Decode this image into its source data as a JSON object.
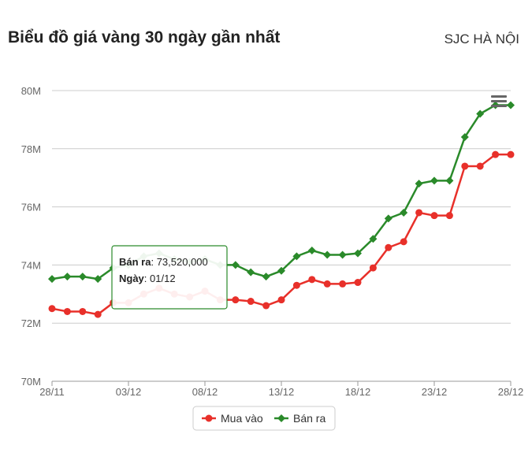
{
  "header": {
    "title": "Biểu đồ giá vàng 30 ngày gần nhất",
    "location": "SJC HÀ NỘI"
  },
  "chart_data": {
    "type": "line",
    "x": [
      "28/11",
      "29/11",
      "30/11",
      "01/12",
      "02/12",
      "03/12",
      "04/12",
      "05/12",
      "06/12",
      "07/12",
      "08/12",
      "09/12",
      "10/12",
      "11/12",
      "12/12",
      "13/12",
      "14/12",
      "15/12",
      "16/12",
      "17/12",
      "18/12",
      "19/12",
      "20/12",
      "21/12",
      "22/12",
      "23/12",
      "24/12",
      "25/12",
      "26/12",
      "27/12",
      "28/12"
    ],
    "x_tick_labels": [
      "28/11",
      "03/12",
      "08/12",
      "13/12",
      "18/12",
      "23/12",
      "28/12"
    ],
    "x_tick_indices": [
      0,
      5,
      10,
      15,
      20,
      25,
      30
    ],
    "y_ticks": [
      70,
      72,
      74,
      76,
      78,
      80
    ],
    "y_tick_labels": [
      "70M",
      "72M",
      "74M",
      "76M",
      "78M",
      "80M"
    ],
    "ylim": [
      70,
      80
    ],
    "grid": true,
    "legend_position": "bottom-center",
    "series": [
      {
        "name": "Mua vào",
        "color": "#e8302a",
        "marker": "circle",
        "values": [
          72.5,
          72.4,
          72.4,
          72.3,
          72.7,
          72.7,
          73.0,
          73.2,
          73.0,
          72.9,
          73.1,
          72.8,
          72.8,
          72.75,
          72.6,
          72.8,
          73.3,
          73.5,
          73.35,
          73.35,
          73.4,
          73.9,
          74.6,
          74.8,
          75.8,
          75.7,
          75.7,
          77.4,
          77.4,
          77.8,
          77.8
        ]
      },
      {
        "name": "Bán ra",
        "color": "#2a8a2a",
        "marker": "diamond",
        "values": [
          73.52,
          73.6,
          73.6,
          73.52,
          73.9,
          74.0,
          74.3,
          74.4,
          74.2,
          74.1,
          74.2,
          74.0,
          74.0,
          73.75,
          73.6,
          73.8,
          74.3,
          74.5,
          74.35,
          74.35,
          74.4,
          74.9,
          75.6,
          75.8,
          76.8,
          76.9,
          76.9,
          78.4,
          79.2,
          79.5,
          79.5
        ]
      }
    ],
    "tooltip": {
      "series_label": "Bán ra",
      "value": "73,520,000",
      "date_label": "Ngày",
      "date": "01/12"
    }
  },
  "icons": {
    "menu": "hamburger-menu-icon"
  }
}
